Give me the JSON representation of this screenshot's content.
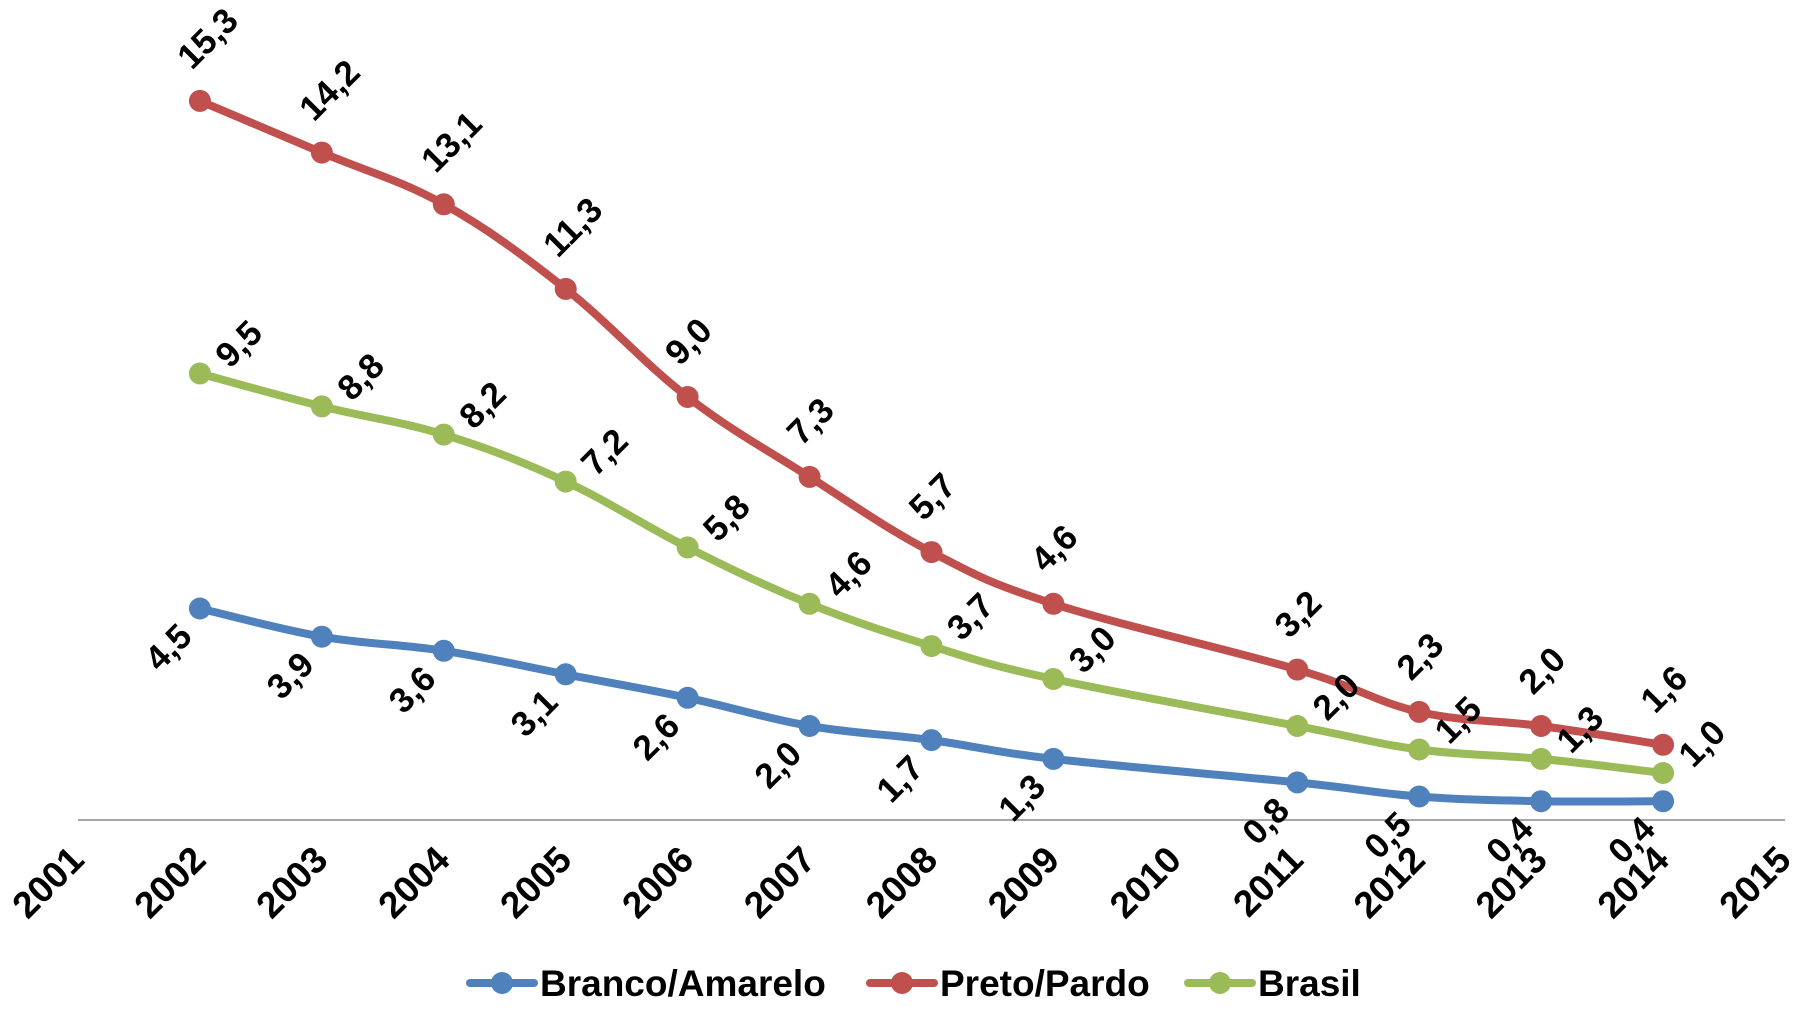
{
  "chart_data": {
    "type": "line",
    "title": "",
    "xlabel": "",
    "ylabel": "",
    "xlim": [
      2001,
      2015
    ],
    "ylim": [
      0,
      16
    ],
    "x_ticks": [
      "2001",
      "2002",
      "2003",
      "2004",
      "2005",
      "2006",
      "2007",
      "2008",
      "2009",
      "2010",
      "2011",
      "2012",
      "2013",
      "2014",
      "2015"
    ],
    "grid": false,
    "legend_position": "bottom",
    "x": [
      2002,
      2003,
      2004,
      2005,
      2006,
      2007,
      2008,
      2009,
      2011,
      2012,
      2013,
      2014
    ],
    "series": [
      {
        "name": "Branco/Amarelo",
        "color": "#4F81BD",
        "values": [
          4.5,
          3.9,
          3.6,
          3.1,
          2.6,
          2.0,
          1.7,
          1.3,
          0.8,
          0.5,
          0.4,
          0.4
        ],
        "labels": [
          "4,5",
          "3,9",
          "3,6",
          "3,1",
          "2,6",
          "2,0",
          "1,7",
          "1,3",
          "0,8",
          "0,5",
          "0,4",
          "0,4"
        ]
      },
      {
        "name": "Preto/Pardo",
        "color": "#C0504D",
        "values": [
          15.3,
          14.2,
          13.1,
          11.3,
          9.0,
          7.3,
          5.7,
          4.6,
          3.2,
          2.3,
          2.0,
          1.6
        ],
        "labels": [
          "15,3",
          "14,2",
          "13,1",
          "11,3",
          "9,0",
          "7,3",
          "5,7",
          "4,6",
          "3,2",
          "2,3",
          "2,0",
          "1,6"
        ]
      },
      {
        "name": "Brasil",
        "color": "#9BBB59",
        "values": [
          9.5,
          8.8,
          8.2,
          7.2,
          5.8,
          4.6,
          3.7,
          3.0,
          2.0,
          1.5,
          1.3,
          1.0
        ],
        "labels": [
          "9,5",
          "8,8",
          "8,2",
          "7,2",
          "5,8",
          "4,6",
          "3,7",
          "3,0",
          "2,0",
          "1,5",
          "1,3",
          "1,0"
        ]
      }
    ]
  }
}
